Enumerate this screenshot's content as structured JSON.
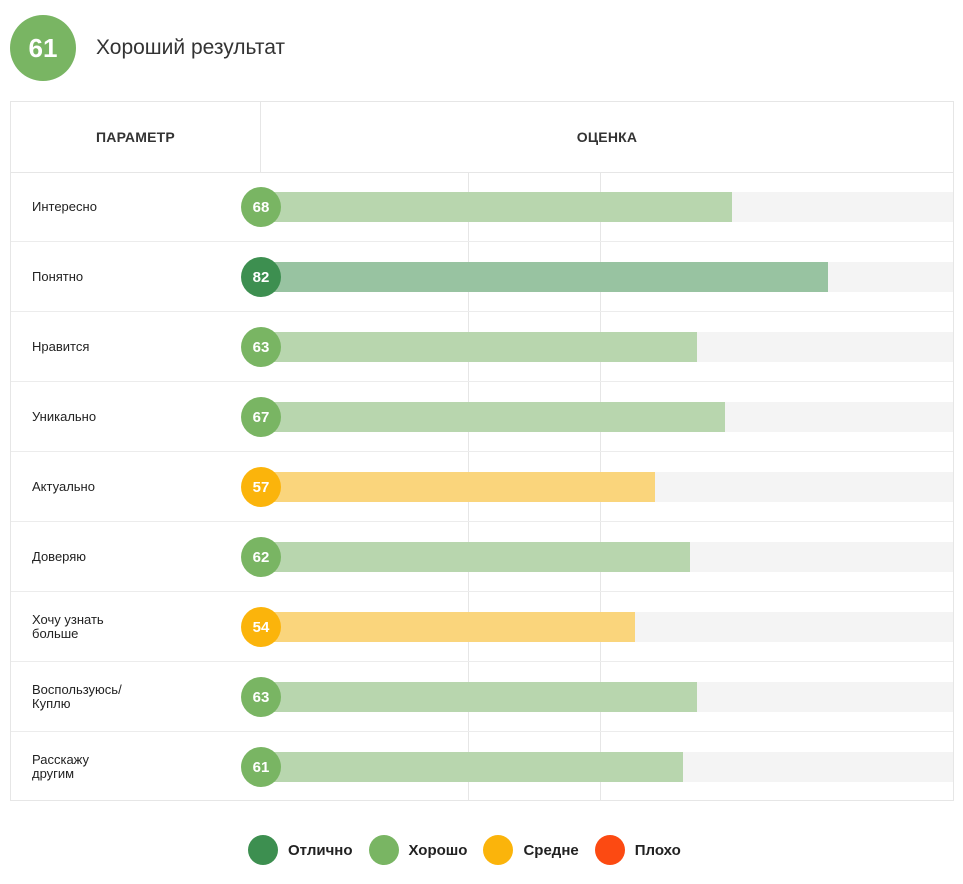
{
  "overall": {
    "score": "61",
    "title": "Хороший результат",
    "color": "#79b563"
  },
  "table": {
    "header_param": "ПАРАМЕТР",
    "header_score": "ОЦЕНКА"
  },
  "colors": {
    "excellent": "#3d8f50",
    "good": "#79b563",
    "average": "#fbb40b",
    "bad": "#fc4a12",
    "excellent_bar": "#98c3a1",
    "good_bar": "#b8d6ae",
    "average_bar": "#fad57c",
    "track": "#f4f4f4"
  },
  "chart_data": {
    "type": "bar",
    "orientation": "horizontal",
    "categories": [
      "Интересно",
      "Понятно",
      "Нравится",
      "Уникально",
      "Актуально",
      "Доверяю",
      "Хочу узнать\nбольше",
      "Воспользуюсь/\nКуплю",
      "Расскажу\nдругим"
    ],
    "values": [
      68,
      82,
      63,
      67,
      57,
      62,
      54,
      63,
      61
    ],
    "ratings": [
      "good",
      "excellent",
      "good",
      "good",
      "average",
      "good",
      "average",
      "good",
      "good"
    ],
    "xlim": [
      0,
      100
    ],
    "grid": true,
    "legend_position": "bottom"
  },
  "legend": [
    {
      "key": "excellent",
      "label": "Отлично"
    },
    {
      "key": "good",
      "label": "Хорошо"
    },
    {
      "key": "average",
      "label": "Средне"
    },
    {
      "key": "bad",
      "label": "Плохо"
    }
  ]
}
